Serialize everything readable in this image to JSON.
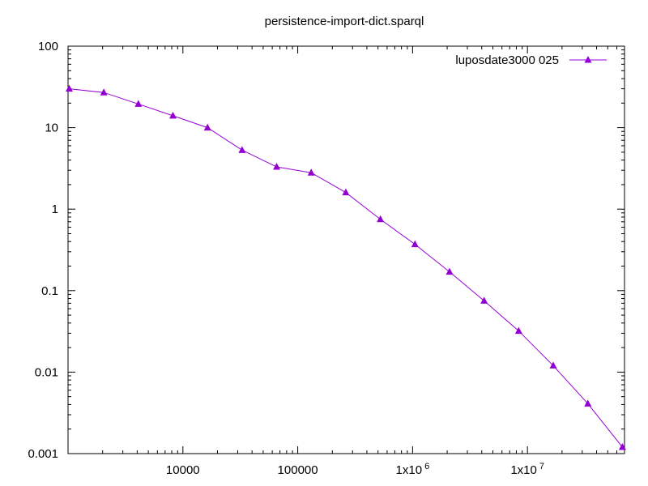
{
  "chart_data": {
    "type": "line",
    "title": "persistence-import-dict.sparql",
    "xlabel": "",
    "ylabel": "",
    "x_scale": "log",
    "y_scale": "log",
    "xlim": [
      1000,
      70000000
    ],
    "ylim": [
      0.001,
      100
    ],
    "x_ticks": [
      {
        "value": 10000,
        "label": "10000"
      },
      {
        "value": 100000,
        "label": "100000"
      },
      {
        "value": 1000000,
        "label": "1x10",
        "exp": "6"
      },
      {
        "value": 10000000,
        "label": "1x10",
        "exp": "7"
      }
    ],
    "y_ticks": [
      {
        "value": 100,
        "label": "100"
      },
      {
        "value": 10,
        "label": "10"
      },
      {
        "value": 1,
        "label": "1"
      },
      {
        "value": 0.1,
        "label": "0.1"
      },
      {
        "value": 0.01,
        "label": "0.01"
      },
      {
        "value": 0.001,
        "label": "0.001"
      }
    ],
    "grid": false,
    "legend_position": "top-right",
    "series": [
      {
        "name": "luposdate3000 025",
        "color": "#9400d3",
        "marker": "triangle",
        "x": [
          1024,
          2048,
          4096,
          8192,
          16384,
          32768,
          65536,
          131072,
          262144,
          524288,
          1048576,
          2097152,
          4194304,
          8388608,
          16777216,
          33554432,
          67108864
        ],
        "y": [
          30,
          27,
          19.5,
          14,
          10,
          5.3,
          3.3,
          2.8,
          1.6,
          0.75,
          0.37,
          0.17,
          0.075,
          0.032,
          0.012,
          0.0041,
          0.0012
        ]
      }
    ]
  }
}
